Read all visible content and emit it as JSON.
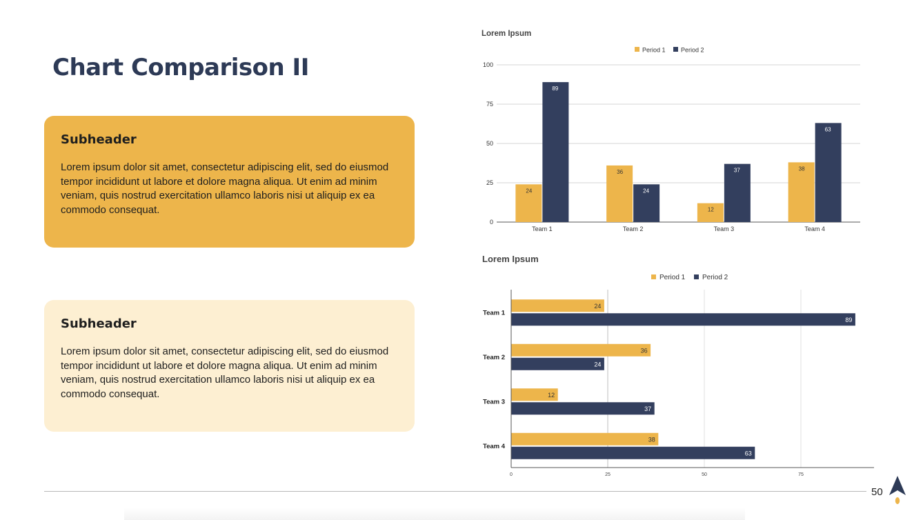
{
  "slide": {
    "title": "Chart Comparison II",
    "page_number": "50"
  },
  "cards": [
    {
      "subheader": "Subheader",
      "body": "Lorem ipsum dolor sit amet, consectetur adipiscing elit, sed do eiusmod tempor incididunt ut labore et dolore magna aliqua. Ut enim ad minim veniam, quis nostrud exercitation ullamco laboris nisi ut aliquip ex ea commodo consequat."
    },
    {
      "subheader": "Subheader",
      "body": "Lorem ipsum dolor sit amet, consectetur adipiscing elit, sed do eiusmod tempor incididunt ut labore et dolore magna aliqua. Ut enim ad minim veniam, quis nostrud exercitation ullamco laboris nisi ut aliquip ex ea commodo consequat."
    }
  ],
  "colors": {
    "period1": "#edb54b",
    "period2": "#333f5e",
    "title": "#2d3a56"
  },
  "icons": {
    "logo": "rocket-logo-icon"
  },
  "chart_data": [
    {
      "type": "bar",
      "orientation": "vertical",
      "title": "Lorem Ipsum",
      "categories": [
        "Team 1",
        "Team 2",
        "Team 3",
        "Team 4"
      ],
      "series": [
        {
          "name": "Period 1",
          "values": [
            24,
            36,
            12,
            38
          ]
        },
        {
          "name": "Period 2",
          "values": [
            89,
            24,
            37,
            63
          ]
        }
      ],
      "ylim": [
        0,
        100
      ],
      "yticks": [
        0,
        25,
        50,
        75,
        100
      ],
      "legend": "top-center",
      "grid": true
    },
    {
      "type": "bar",
      "orientation": "horizontal",
      "title": "Lorem Ipsum",
      "categories": [
        "Team 1",
        "Team 2",
        "Team 3",
        "Team 4"
      ],
      "series": [
        {
          "name": "Period 1",
          "values": [
            24,
            36,
            12,
            38
          ]
        },
        {
          "name": "Period 2",
          "values": [
            89,
            24,
            37,
            63
          ]
        }
      ],
      "xlim": [
        0,
        90
      ],
      "xticks": [
        0,
        25,
        50,
        75
      ],
      "legend": "top-center",
      "grid": true
    }
  ]
}
